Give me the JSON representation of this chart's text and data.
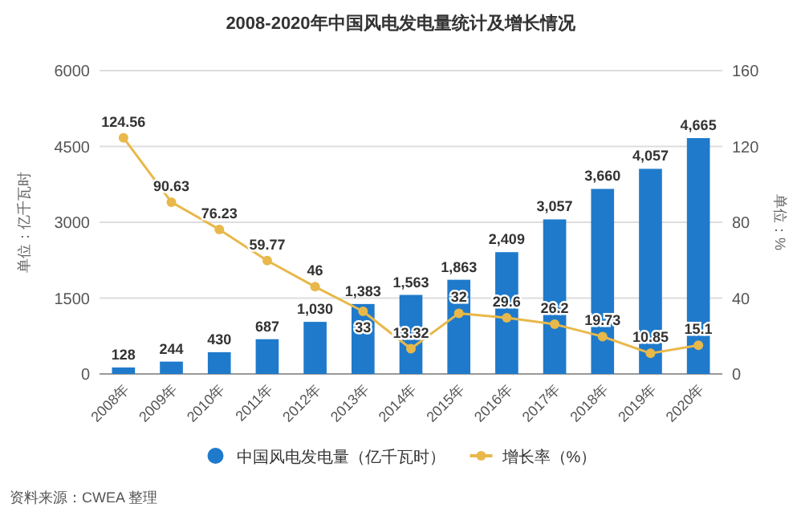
{
  "chart_data": {
    "type": "bar",
    "title": "2008-2020年中国风电发电量统计及增长情况",
    "categories": [
      "2008年",
      "2009年",
      "2010年",
      "2011年",
      "2012年",
      "2013年",
      "2014年",
      "2015年",
      "2016年",
      "2017年",
      "2018年",
      "2019年",
      "2020年"
    ],
    "series": [
      {
        "name": "中国风电发电量（亿千瓦时）",
        "color": "#1f7acb",
        "values": [
          128,
          244,
          430,
          687,
          1030,
          1383,
          1563,
          1863,
          2409,
          3057,
          3660,
          4057,
          4665
        ],
        "value_labels": [
          "128",
          "244",
          "430",
          "687",
          "1,030",
          "1,383",
          "1,563",
          "1,863",
          "2,409",
          "3,057",
          "3,660",
          "4,057",
          "4,665"
        ]
      },
      {
        "name": "增长率（%）",
        "type": "line",
        "axis": "y2",
        "color": "#e8b84a",
        "marker": "circle",
        "values": [
          124.56,
          90.63,
          76.23,
          59.77,
          46.0,
          33.0,
          13.32,
          32.0,
          29.6,
          26.2,
          19.73,
          10.85,
          15.1
        ],
        "value_labels": [
          "124.56",
          "90.63",
          "76.23",
          "59.77",
          "46",
          "33",
          "13.32",
          "32",
          "29.6",
          "26.2",
          "19.73",
          "10.85",
          "15.1"
        ]
      }
    ],
    "ylabel": "单位：亿千瓦时",
    "y2label": "单位：%",
    "ylim": [
      0,
      6000
    ],
    "yticks": [
      0,
      1500,
      3000,
      4500,
      6000
    ],
    "y2lim": [
      0,
      160
    ],
    "y2ticks": [
      0,
      40,
      80,
      120,
      160
    ],
    "grid": "y",
    "legend": "bottom",
    "annotations": [
      "资料来源：CWEA 整理"
    ]
  }
}
